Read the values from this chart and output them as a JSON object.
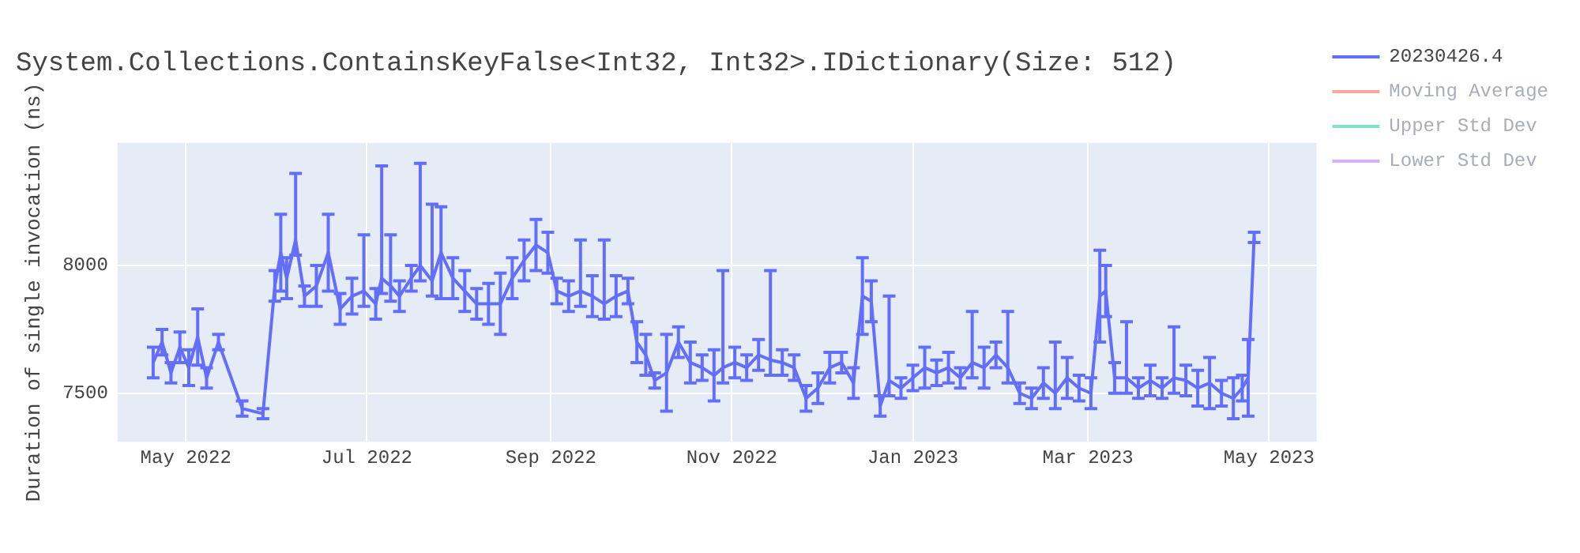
{
  "chart_data": {
    "type": "line",
    "title": "System.Collections.ContainsKeyFalse<Int32, Int32>.IDictionary(Size: 512)",
    "ylabel": "Duration of single invocation (ns)",
    "x": [
      "2022-04-20",
      "2022-04-23",
      "2022-04-26",
      "2022-04-29",
      "2022-05-02",
      "2022-05-05",
      "2022-05-08",
      "2022-05-12",
      "2022-05-20",
      "2022-05-27",
      "2022-05-31",
      "2022-06-02",
      "2022-06-04",
      "2022-06-07",
      "2022-06-10",
      "2022-06-14",
      "2022-06-18",
      "2022-06-22",
      "2022-06-26",
      "2022-06-30",
      "2022-07-04",
      "2022-07-06",
      "2022-07-09",
      "2022-07-12",
      "2022-07-16",
      "2022-07-19",
      "2022-07-23",
      "2022-07-26",
      "2022-07-30",
      "2022-08-03",
      "2022-08-07",
      "2022-08-11",
      "2022-08-15",
      "2022-08-19",
      "2022-08-23",
      "2022-08-27",
      "2022-08-31",
      "2022-09-03",
      "2022-09-07",
      "2022-09-11",
      "2022-09-15",
      "2022-09-19",
      "2022-09-23",
      "2022-09-27",
      "2022-09-30",
      "2022-10-03",
      "2022-10-06",
      "2022-10-10",
      "2022-10-14",
      "2022-10-18",
      "2022-10-22",
      "2022-10-26",
      "2022-10-29",
      "2022-11-02",
      "2022-11-06",
      "2022-11-10",
      "2022-11-14",
      "2022-11-18",
      "2022-11-22",
      "2022-11-26",
      "2022-11-30",
      "2022-12-04",
      "2022-12-08",
      "2022-12-12",
      "2022-12-15",
      "2022-12-18",
      "2022-12-21",
      "2022-12-24",
      "2022-12-28",
      "2023-01-01",
      "2023-01-05",
      "2023-01-09",
      "2023-01-13",
      "2023-01-17",
      "2023-01-21",
      "2023-01-25",
      "2023-01-29",
      "2023-02-02",
      "2023-02-06",
      "2023-02-10",
      "2023-02-14",
      "2023-02-18",
      "2023-02-22",
      "2023-02-26",
      "2023-03-02",
      "2023-03-05",
      "2023-03-07",
      "2023-03-10",
      "2023-03-14",
      "2023-03-18",
      "2023-03-22",
      "2023-03-26",
      "2023-03-30",
      "2023-04-03",
      "2023-04-07",
      "2023-04-11",
      "2023-04-15",
      "2023-04-19",
      "2023-04-22",
      "2023-04-24",
      "2023-04-26"
    ],
    "series": [
      {
        "name": "20230426.4",
        "color": "#636efa",
        "values": [
          7620,
          7700,
          7580,
          7680,
          7600,
          7720,
          7560,
          7700,
          7440,
          7420,
          7920,
          8050,
          7950,
          8100,
          7880,
          7920,
          8050,
          7830,
          7880,
          7900,
          7850,
          7950,
          7920,
          7880,
          7950,
          8000,
          7940,
          8050,
          7950,
          7900,
          7850,
          7850,
          7850,
          7950,
          8020,
          8080,
          8050,
          7900,
          7880,
          7900,
          7880,
          7850,
          7880,
          7900,
          7700,
          7650,
          7550,
          7580,
          7700,
          7620,
          7600,
          7570,
          7600,
          7620,
          7600,
          7650,
          7630,
          7620,
          7600,
          7480,
          7520,
          7600,
          7620,
          7540,
          7880,
          7860,
          7450,
          7550,
          7520,
          7560,
          7600,
          7580,
          7600,
          7560,
          7620,
          7600,
          7650,
          7600,
          7500,
          7480,
          7540,
          7500,
          7560,
          7520,
          7500,
          7880,
          7900,
          7560,
          7560,
          7520,
          7550,
          7520,
          7560,
          7550,
          7520,
          7540,
          7500,
          7480,
          7520,
          7560,
          8110
        ],
        "errors": [
          60,
          50,
          40,
          60,
          70,
          110,
          40,
          30,
          30,
          20,
          60,
          150,
          80,
          [
            8040,
            8360
          ],
          40,
          80,
          150,
          60,
          70,
          [
            7840,
            8120
          ],
          60,
          [
            7890,
            8390
          ],
          [
            7860,
            8120
          ],
          60,
          50,
          [
            7940,
            8400
          ],
          [
            7880,
            8240
          ],
          180,
          80,
          80,
          60,
          80,
          120,
          80,
          80,
          100,
          80,
          50,
          60,
          [
            7840,
            8100
          ],
          80,
          [
            7790,
            8100
          ],
          80,
          50,
          80,
          80,
          30,
          150,
          60,
          80,
          50,
          100,
          [
            7540,
            7980
          ],
          60,
          50,
          60,
          [
            7570,
            7980
          ],
          50,
          50,
          50,
          60,
          60,
          40,
          60,
          150,
          80,
          40,
          [
            7490,
            7880
          ],
          40,
          50,
          80,
          50,
          60,
          40,
          [
            7560,
            7820
          ],
          80,
          50,
          [
            7540,
            7820
          ],
          40,
          40,
          60,
          [
            7440,
            7700
          ],
          80,
          50,
          60,
          180,
          100,
          60,
          [
            7500,
            7780
          ],
          40,
          60,
          40,
          [
            7500,
            7760
          ],
          60,
          70,
          100,
          50,
          80,
          50,
          150,
          20
        ]
      },
      {
        "name": "Moving Average",
        "color": "#ef553b",
        "values": [
          null,
          null,
          null,
          null,
          null,
          null,
          null,
          null,
          null,
          null,
          null,
          null,
          null,
          null,
          null,
          null,
          null,
          null,
          null,
          null,
          null,
          null,
          null,
          null,
          null,
          null,
          null,
          null,
          null,
          null,
          null,
          null,
          null,
          null,
          null,
          null,
          null,
          null,
          null,
          null,
          null,
          null,
          null,
          null,
          null,
          null,
          null,
          null,
          null,
          null,
          null,
          null,
          null,
          null,
          null,
          null,
          null,
          null,
          null,
          null,
          null,
          null,
          null,
          null,
          null,
          null,
          null,
          null,
          null,
          null,
          null,
          null,
          null,
          null,
          null,
          null,
          null,
          null,
          null,
          null,
          null,
          null,
          null,
          null,
          null,
          null,
          null,
          null,
          null,
          null,
          null,
          null,
          null,
          null,
          null,
          null,
          null,
          null,
          null,
          null,
          null
        ]
      },
      {
        "name": "Upper Std Dev",
        "color": "#00cc96",
        "values": [
          null,
          null,
          null,
          null,
          null,
          null,
          null,
          null,
          null,
          null,
          null,
          null,
          null,
          null,
          null,
          null,
          null,
          null,
          null,
          null,
          null,
          null,
          null,
          null,
          null,
          null,
          null,
          null,
          null,
          null,
          null,
          null,
          null,
          null,
          null,
          null,
          null,
          null,
          null,
          null,
          null,
          null,
          null,
          null,
          null,
          null,
          null,
          null,
          null,
          null,
          null,
          null,
          null,
          null,
          null,
          null,
          null,
          null,
          null,
          null,
          null,
          null,
          null,
          null,
          null,
          null,
          null,
          null,
          null,
          null,
          null,
          null,
          null,
          null,
          null,
          null,
          null,
          null,
          null,
          null,
          null,
          null,
          null,
          null,
          null,
          null,
          null,
          null,
          null,
          null,
          null,
          null,
          null,
          null,
          null,
          null,
          null,
          null,
          null,
          null,
          null
        ]
      },
      {
        "name": "Lower Std Dev",
        "color": "#ab63fa",
        "values": [
          null,
          null,
          null,
          null,
          null,
          null,
          null,
          null,
          null,
          null,
          null,
          null,
          null,
          null,
          null,
          null,
          null,
          null,
          null,
          null,
          null,
          null,
          null,
          null,
          null,
          null,
          null,
          null,
          null,
          null,
          null,
          null,
          null,
          null,
          null,
          null,
          null,
          null,
          null,
          null,
          null,
          null,
          null,
          null,
          null,
          null,
          null,
          null,
          null,
          null,
          null,
          null,
          null,
          null,
          null,
          null,
          null,
          null,
          null,
          null,
          null,
          null,
          null,
          null,
          null,
          null,
          null,
          null,
          null,
          null,
          null,
          null,
          null,
          null,
          null,
          null,
          null,
          null,
          null,
          null,
          null,
          null,
          null,
          null,
          null,
          null,
          null,
          null,
          null,
          null,
          null,
          null,
          null,
          null,
          null,
          null,
          null,
          null,
          null,
          null,
          null
        ]
      }
    ],
    "xlim": [
      "2022-04-08",
      "2023-05-17"
    ],
    "xticks": [
      {
        "value": "2022-05-01",
        "label": "May 2022"
      },
      {
        "value": "2022-07-01",
        "label": "Jul 2022"
      },
      {
        "value": "2022-09-01",
        "label": "Sep 2022"
      },
      {
        "value": "2022-11-01",
        "label": "Nov 2022"
      },
      {
        "value": "2023-01-01",
        "label": "Jan 2023"
      },
      {
        "value": "2023-03-01",
        "label": "Mar 2023"
      },
      {
        "value": "2023-05-01",
        "label": "May 2023"
      }
    ],
    "ylim": [
      7310,
      8480
    ],
    "yticks": [
      7500,
      8000
    ],
    "grid": true,
    "legend": "top right",
    "marker": "none",
    "line_style": "solid"
  }
}
